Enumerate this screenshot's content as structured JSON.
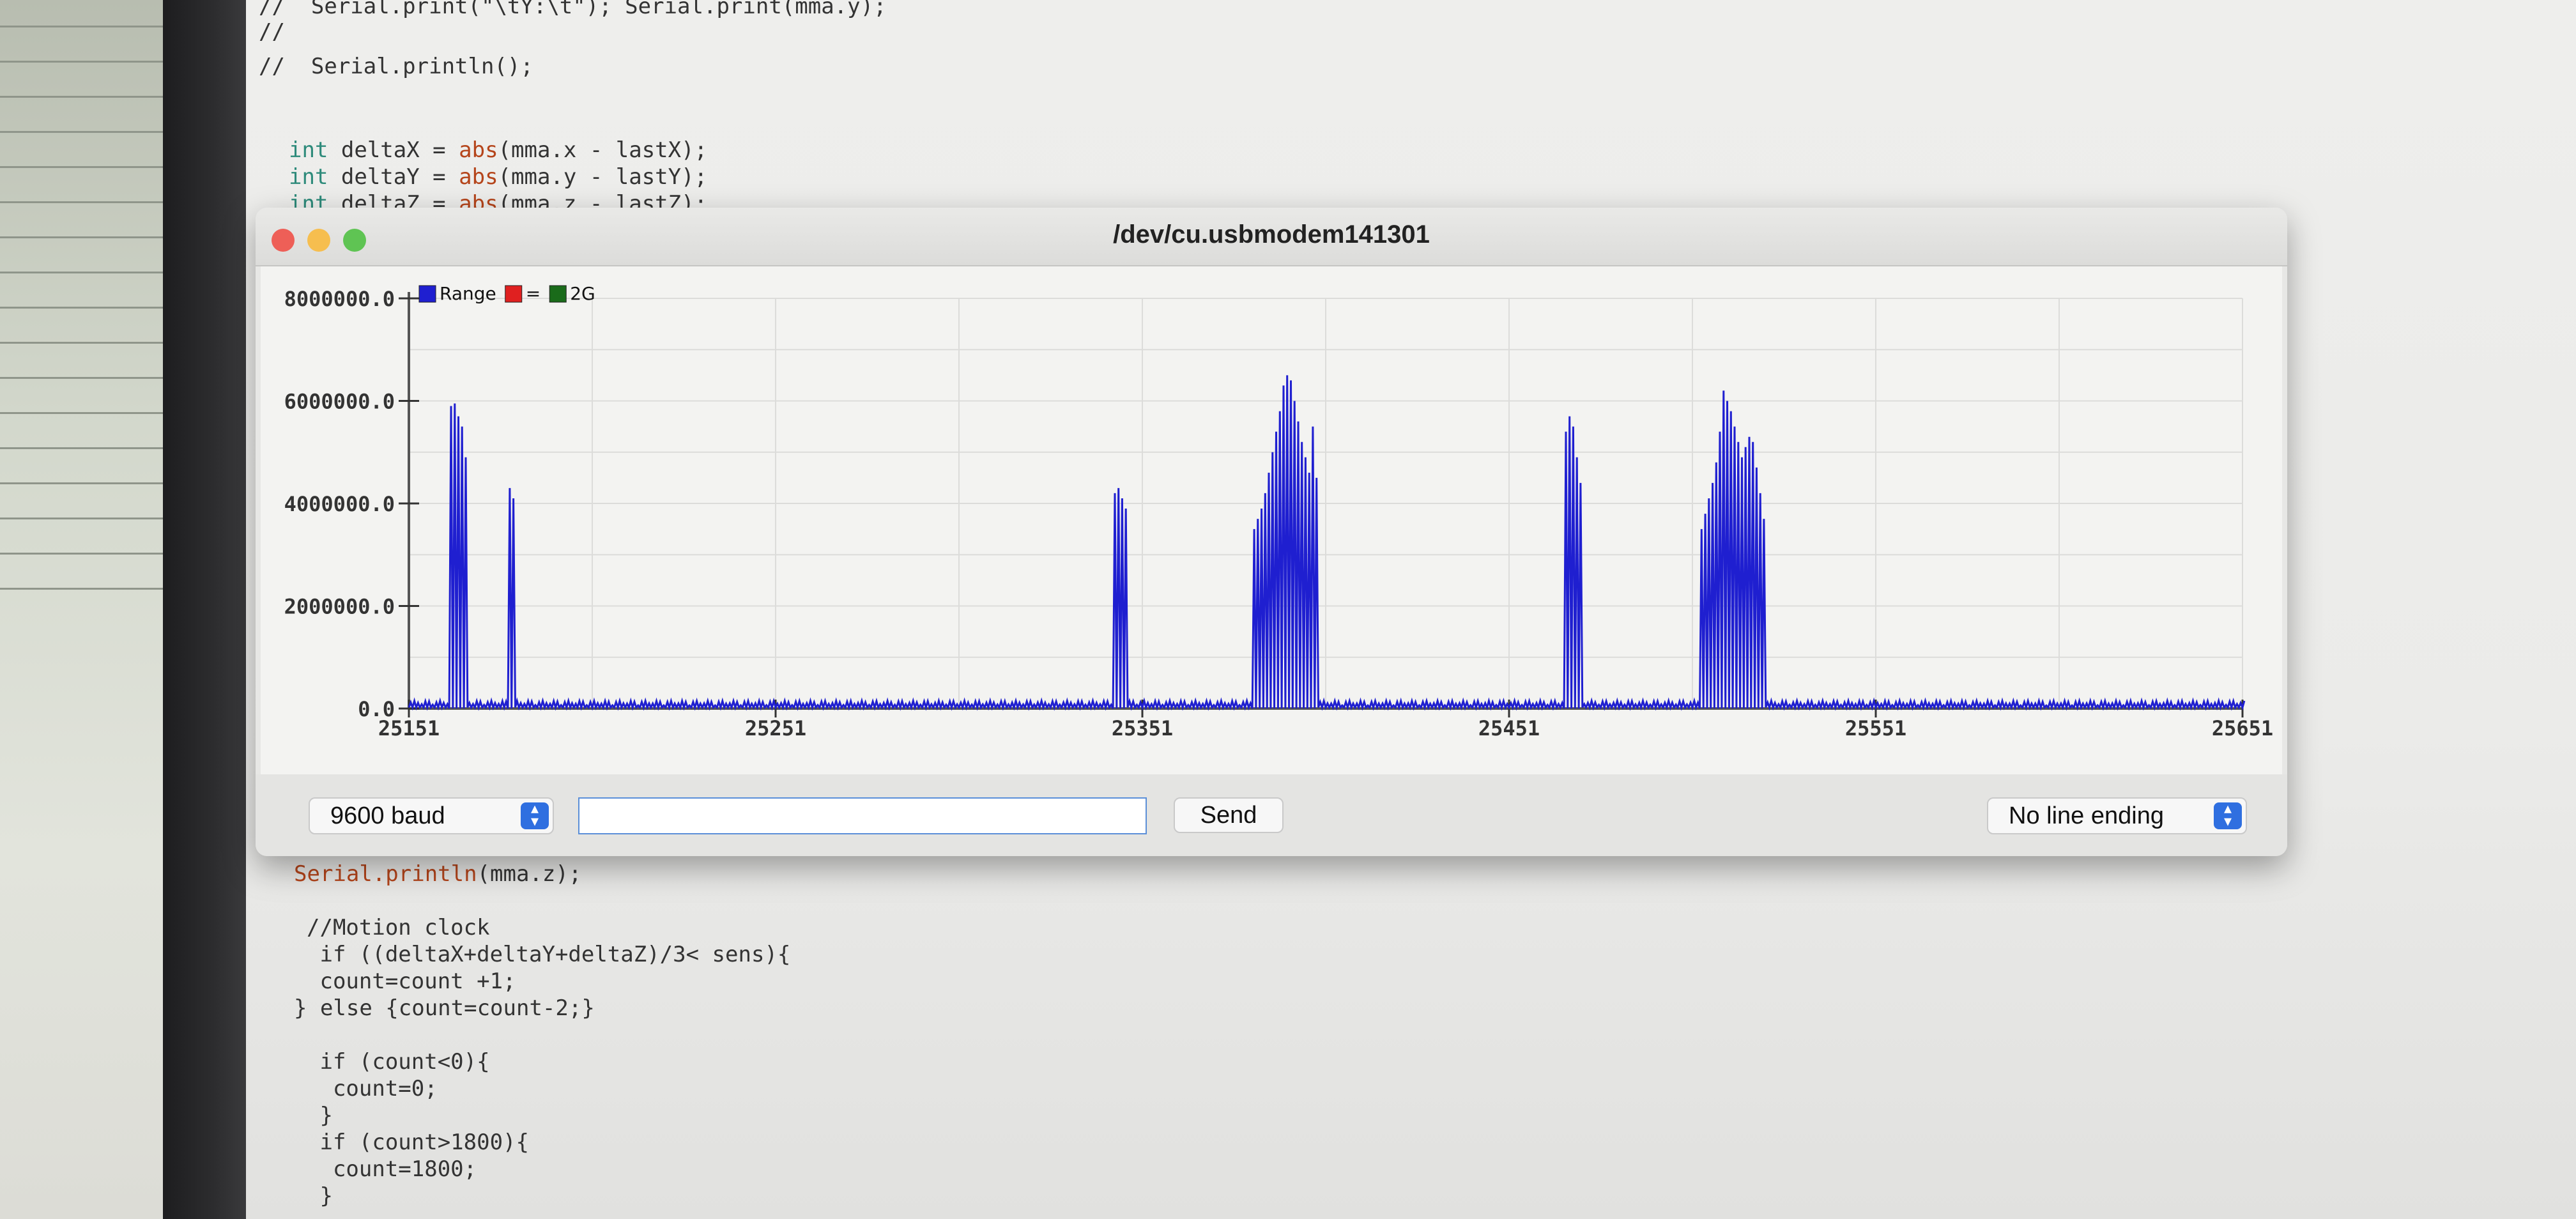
{
  "editor": {
    "top_lines": [
      "//  Serial.print(\"\\tY:\\t\"); Serial.print(mma.y);",
      "//",
      "//  Serial.println();"
    ],
    "delta_lines": [
      {
        "kw": "int",
        "pre": " deltaX = ",
        "fn": "abs",
        "post": "(mma.x - lastX);"
      },
      {
        "kw": "int",
        "pre": " deltaY = ",
        "fn": "abs",
        "post": "(mma.y - lastY);"
      },
      {
        "kw": "int",
        "pre": " deltaZ = ",
        "fn": "abs",
        "post": "(mma.z - lastZ);"
      }
    ],
    "println_line": {
      "fn": "Serial.println",
      "post": "(mma.z);"
    },
    "bottom_lines": [
      "//Motion clock",
      " if ((deltaX+deltaY+deltaZ)/3< sens){",
      " count=count +1;",
      "} else {count=count-2;}",
      "",
      " if (count<0){",
      "  count=0;",
      " }",
      " if (count>1800){",
      "  count=1800;",
      " }"
    ]
  },
  "window": {
    "title": "/dev/cu.usbmodem141301",
    "colors": {
      "close": "#ee5f57",
      "minimize": "#f6be4f",
      "zoom": "#5fc453"
    }
  },
  "legend": {
    "items": [
      {
        "label": "Range",
        "color": "#1f1fd0"
      },
      {
        "label": "=",
        "color": "#e02020"
      },
      {
        "label": "2G",
        "color": "#1a6b1a"
      }
    ]
  },
  "controls": {
    "baud": "9600 baud",
    "send_label": "Send",
    "send_value": "",
    "line_ending": "No line ending"
  },
  "chart_data": {
    "type": "line",
    "x_ticks": [
      "25151",
      "25251",
      "25351",
      "25451",
      "25551",
      "25651"
    ],
    "y_ticks": [
      "0.0",
      "2000000.0",
      "4000000.0",
      "6000000.0",
      "8000000.0"
    ],
    "xlim": [
      25151,
      25651
    ],
    "ylim": [
      0,
      8000000
    ],
    "grid": true,
    "legend_position": "top-left",
    "series": [
      {
        "color": "#1f1fd0",
        "baseline_low": 0,
        "baseline_high": 150000,
        "bursts": [
          {
            "start": 25162,
            "peaks": [
              5900000,
              5950000,
              5700000,
              5500000,
              4900000
            ]
          },
          {
            "start": 25178,
            "peaks": [
              4300000,
              4100000
            ]
          },
          {
            "start": 25343,
            "peaks": [
              4200000,
              4300000,
              4100000,
              3900000
            ]
          },
          {
            "start": 25381,
            "peaks": [
              3500000,
              3700000,
              3900000,
              4200000,
              4600000,
              5000000,
              5400000,
              5800000,
              6300000,
              6500000,
              6400000,
              6000000,
              5600000,
              5200000,
              4900000,
              4600000,
              5500000,
              4500000
            ]
          },
          {
            "start": 25466,
            "peaks": [
              5400000,
              5700000,
              5500000,
              4900000,
              4400000
            ]
          },
          {
            "start": 25503,
            "peaks": [
              3500000,
              3800000,
              4100000,
              4400000,
              4800000,
              5400000,
              6200000,
              6000000,
              5800000,
              5500000,
              5200000,
              4900000,
              5100000,
              5300000,
              5200000,
              4700000,
              4200000,
              3700000
            ]
          }
        ]
      }
    ]
  }
}
